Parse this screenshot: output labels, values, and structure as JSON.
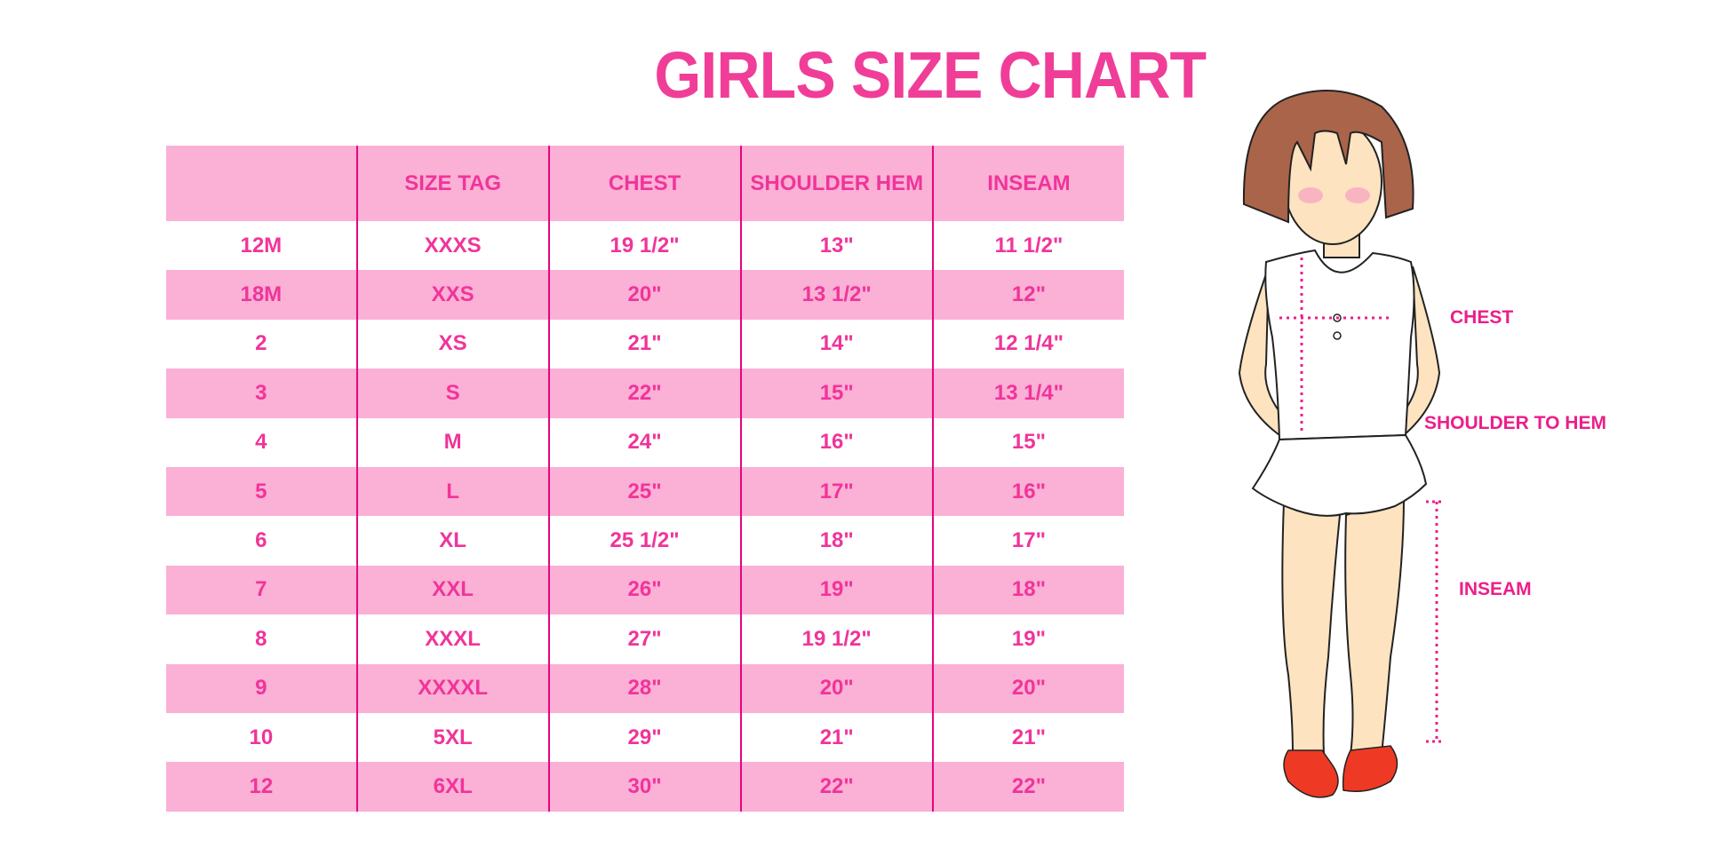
{
  "title": "GIRLS SIZE CHART",
  "table": {
    "headers": [
      "",
      "SIZE TAG",
      "CHEST",
      "SHOULDER HEM",
      "INSEAM"
    ],
    "rows": [
      [
        "12M",
        "XXXS",
        "19 1/2\"",
        "13\"",
        "11 1/2\""
      ],
      [
        "18M",
        "XXS",
        "20\"",
        "13 1/2\"",
        "12\""
      ],
      [
        "2",
        "XS",
        "21\"",
        "14\"",
        "12 1/4\""
      ],
      [
        "3",
        "S",
        "22\"",
        "15\"",
        "13 1/4\""
      ],
      [
        "4",
        "M",
        "24\"",
        "16\"",
        "15\""
      ],
      [
        "5",
        "L",
        "25\"",
        "17\"",
        "16\""
      ],
      [
        "6",
        "XL",
        "25 1/2\"",
        "18\"",
        "17\""
      ],
      [
        "7",
        "XXL",
        "26\"",
        "19\"",
        "18\""
      ],
      [
        "8",
        "XXXL",
        "27\"",
        "19 1/2\"",
        "19\""
      ],
      [
        "9",
        "XXXXL",
        "28\"",
        "20\"",
        "20\""
      ],
      [
        "10",
        "5XL",
        "29\"",
        "21\"",
        "21\""
      ],
      [
        "12",
        "6XL",
        "30\"",
        "22\"",
        "22\""
      ]
    ]
  },
  "figure": {
    "labels": {
      "chest": "CHEST",
      "shoulder_to_hem": "SHOULDER TO HEM",
      "inseam": "INSEAM"
    }
  },
  "colors": {
    "accent": "#f03e98",
    "row_fill": "#fbb0d5",
    "divider": "#e6047e"
  }
}
